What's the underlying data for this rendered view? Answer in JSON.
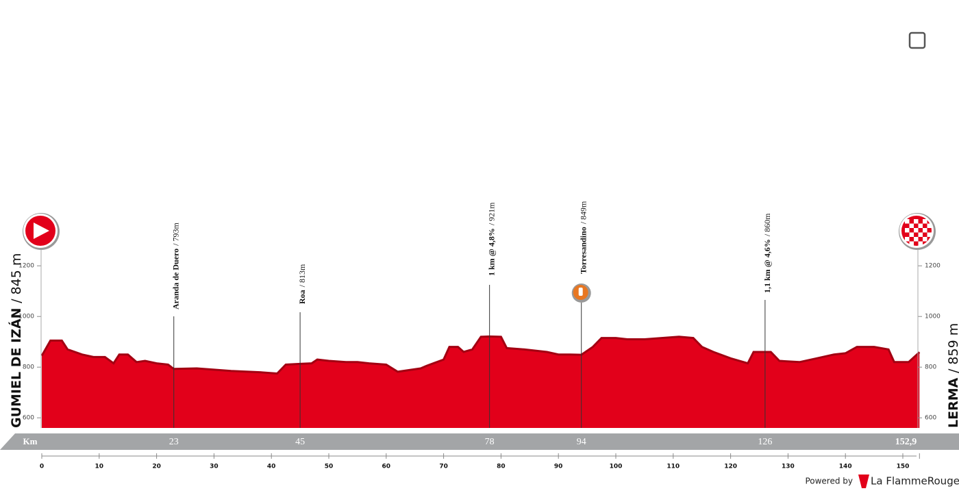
{
  "chart_data": {
    "type": "area",
    "color": "#e2001a",
    "x": [
      0,
      1.5,
      3.5,
      4.5,
      7,
      9,
      11,
      12.5,
      13.5,
      15,
      16.5,
      18,
      20,
      22,
      23,
      27,
      30,
      33,
      38,
      41,
      42.5,
      45,
      47,
      48,
      50,
      53,
      55,
      57,
      60,
      62,
      66,
      67,
      70,
      71,
      72.5,
      73.5,
      75,
      76.5,
      78,
      80,
      81,
      84,
      88,
      90,
      92,
      94,
      96,
      97.5,
      100,
      102,
      105,
      108,
      111,
      113.5,
      115,
      117,
      120,
      123,
      124,
      126,
      127,
      128.5,
      132,
      135,
      138,
      140,
      142,
      145,
      147.5,
      148.5,
      151,
      152.9
    ],
    "values": [
      845,
      905,
      905,
      870,
      850,
      840,
      840,
      815,
      850,
      850,
      820,
      825,
      815,
      810,
      793,
      795,
      790,
      785,
      780,
      775,
      810,
      813,
      815,
      830,
      825,
      820,
      820,
      815,
      810,
      782,
      795,
      805,
      830,
      880,
      880,
      860,
      870,
      920,
      921,
      920,
      875,
      870,
      860,
      850,
      850,
      849,
      880,
      915,
      915,
      910,
      910,
      915,
      920,
      915,
      880,
      860,
      835,
      815,
      860,
      860,
      860,
      825,
      820,
      835,
      850,
      855,
      880,
      880,
      870,
      820,
      820,
      859
    ],
    "xlim": [
      0,
      152.9
    ],
    "ylim": [
      560,
      1300
    ],
    "xticks": [
      0,
      10,
      20,
      30,
      40,
      50,
      60,
      70,
      80,
      90,
      100,
      110,
      120,
      130,
      140,
      150
    ],
    "yticks": [
      600,
      800,
      1000,
      1200
    ],
    "distance_unit": "Km",
    "total_distance": {
      "value": 152.9,
      "label": "152,9"
    },
    "start": {
      "name": "GUMIEL DE IZÁN",
      "elevation": "/ 845 m"
    },
    "finish": {
      "name": "LERMA",
      "elevation": "/ 859 m"
    },
    "waypoints": [
      {
        "km": 23,
        "name": "Aranda de Duero",
        "elevation": "/ 793m"
      },
      {
        "km": 45,
        "name": "Roa",
        "elevation": "/ 813m"
      },
      {
        "km": 78,
        "name": "1 km @ 4,8%",
        "elevation": "/ 921m"
      },
      {
        "km": 94,
        "name": "Torresandino",
        "elevation": "/ 849m"
      },
      {
        "km": 126,
        "name": "1,1 km @ 4,6%",
        "elevation": "/ 860m"
      }
    ]
  },
  "footer": {
    "powered": "Powered by",
    "brand": "La FlammeRouge"
  }
}
